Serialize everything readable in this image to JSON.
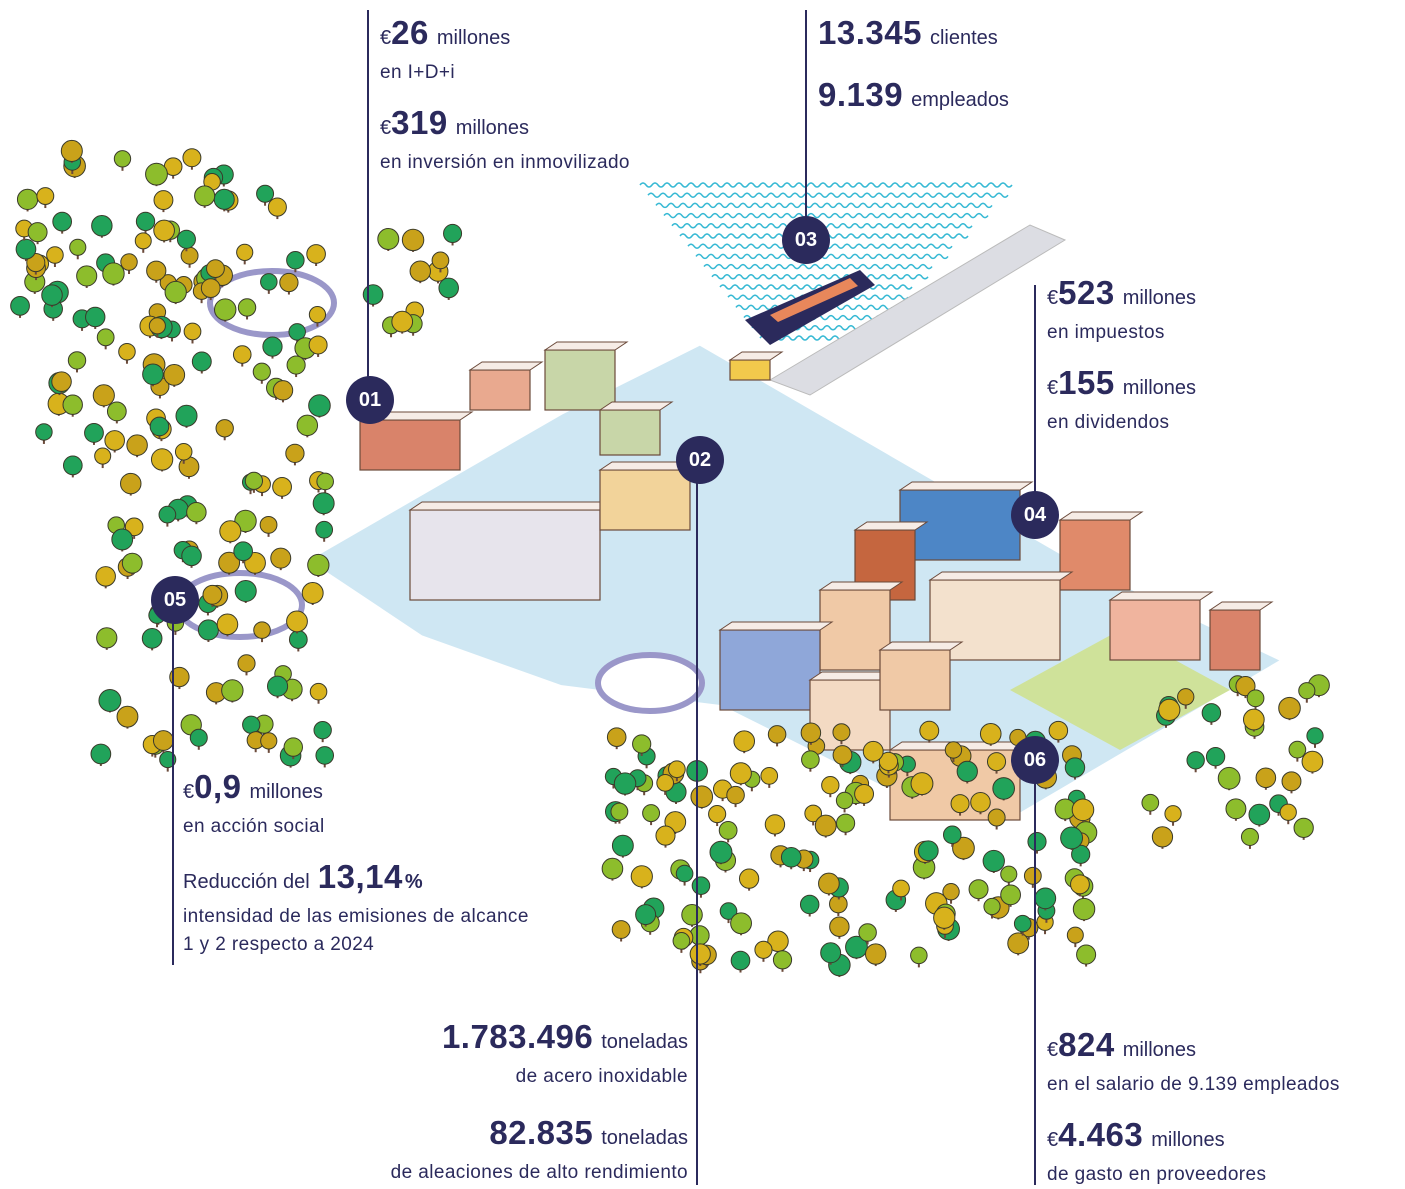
{
  "callouts": [
    {
      "marker": "01",
      "stats": [
        {
          "prefix": "€",
          "value": "26",
          "unit": "millones",
          "lines": [
            "en I+D+i"
          ]
        },
        {
          "prefix": "€",
          "value": "319",
          "unit": "millones",
          "lines": [
            "en inversión en inmovilizado"
          ]
        }
      ]
    },
    {
      "marker": "02",
      "stats": [
        {
          "value": "1.783.496",
          "unit": "toneladas",
          "lines": [
            "de acero inoxidable"
          ]
        },
        {
          "value": "82.835",
          "unit": "toneladas",
          "lines": [
            "de aleaciones de alto rendimiento"
          ]
        }
      ]
    },
    {
      "marker": "03",
      "stats": [
        {
          "value": "13.345",
          "unit": "clientes",
          "lines": []
        },
        {
          "value": "9.139",
          "unit": "empleados",
          "lines": []
        }
      ]
    },
    {
      "marker": "04",
      "stats": [
        {
          "prefix": "€",
          "value": "523",
          "unit": "millones",
          "lines": [
            "en impuestos"
          ]
        },
        {
          "prefix": "€",
          "value": "155",
          "unit": "millones",
          "lines": [
            "en dividendos"
          ]
        }
      ]
    },
    {
      "marker": "05",
      "stats": [
        {
          "prefix": "€",
          "value": "0,9",
          "unit": "millones",
          "lines": [
            "en acción social"
          ]
        },
        {
          "lead": "Reducción del",
          "value": "13,14",
          "unit": "%",
          "lines": [
            "intensidad de las emisiones de alcance",
            "1 y 2 respecto a 2024"
          ]
        }
      ]
    },
    {
      "marker": "06",
      "stats": [
        {
          "prefix": "€",
          "value": "824",
          "unit": "millones",
          "lines": [
            "en el salario de 9.139 empleados"
          ]
        },
        {
          "prefix": "€",
          "value": "4.463",
          "unit": "millones",
          "lines": [
            "de gasto en proveedores"
          ]
        }
      ]
    }
  ]
}
